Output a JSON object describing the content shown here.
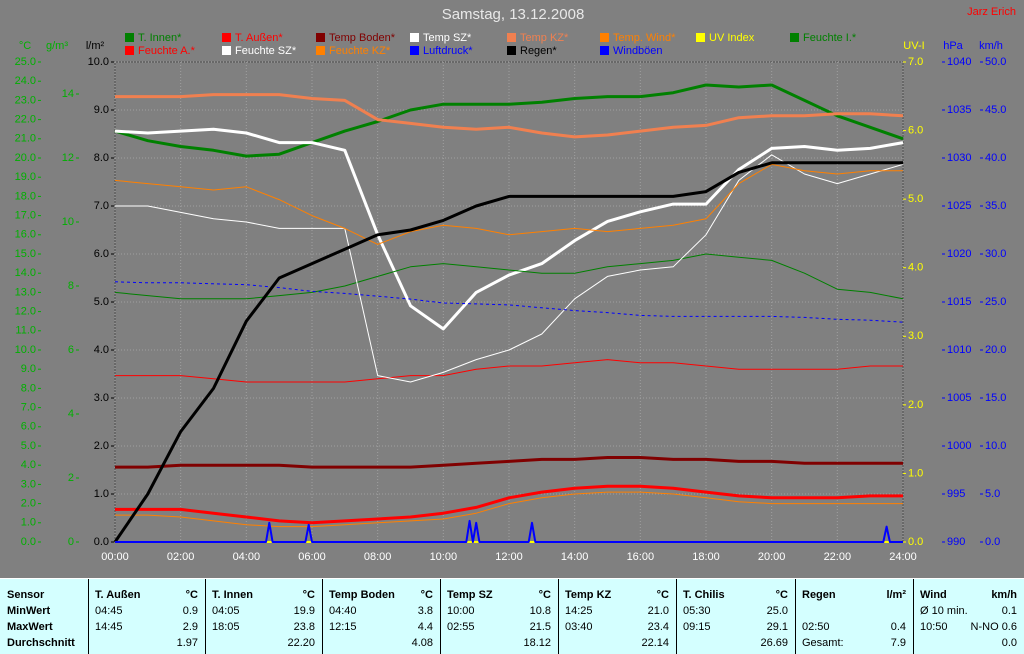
{
  "chart_data": {
    "type": "line",
    "title": "Samstag, 13.12.2008",
    "author": "Jarz Erich",
    "x": [
      0,
      1,
      2,
      3,
      4,
      5,
      6,
      7,
      8,
      9,
      10,
      11,
      12,
      13,
      14,
      15,
      16,
      17,
      18,
      19,
      20,
      21,
      22,
      23,
      24
    ],
    "xlim": [
      0,
      24
    ],
    "xticks": [
      {
        "value": 0,
        "label": "00:00"
      },
      {
        "value": 2,
        "label": "02:00"
      },
      {
        "value": 4,
        "label": "04:00"
      },
      {
        "value": 6,
        "label": "06:00"
      },
      {
        "value": 8,
        "label": "08:00"
      },
      {
        "value": 10,
        "label": "10:00"
      },
      {
        "value": 12,
        "label": "12:00"
      },
      {
        "value": 14,
        "label": "14:00"
      },
      {
        "value": 16,
        "label": "16:00"
      },
      {
        "value": 18,
        "label": "18:00"
      },
      {
        "value": 20,
        "label": "20:00"
      },
      {
        "value": 22,
        "label": "22:00"
      },
      {
        "value": 24,
        "label": "24:00"
      }
    ],
    "axes": [
      {
        "label": "°C",
        "side": "left",
        "color": "#00b000",
        "lim": [
          0,
          25
        ],
        "ticks": [
          {
            "value": 0,
            "label": "0.0"
          },
          {
            "value": 1,
            "label": "1.0"
          },
          {
            "value": 2,
            "label": "2.0"
          },
          {
            "value": 3,
            "label": "3.0"
          },
          {
            "value": 4,
            "label": "4.0"
          },
          {
            "value": 5,
            "label": "5.0"
          },
          {
            "value": 6,
            "label": "6.0"
          },
          {
            "value": 7,
            "label": "7.0"
          },
          {
            "value": 8,
            "label": "8.0"
          },
          {
            "value": 9,
            "label": "9.0"
          },
          {
            "value": 10,
            "label": "10.0"
          },
          {
            "value": 11,
            "label": "11.0"
          },
          {
            "value": 12,
            "label": "12.0"
          },
          {
            "value": 13,
            "label": "13.0"
          },
          {
            "value": 14,
            "label": "14.0"
          },
          {
            "value": 15,
            "label": "15.0"
          },
          {
            "value": 16,
            "label": "16.0"
          },
          {
            "value": 17,
            "label": "17.0"
          },
          {
            "value": 18,
            "label": "18.0"
          },
          {
            "value": 19,
            "label": "19.0"
          },
          {
            "value": 20,
            "label": "20.0"
          },
          {
            "value": 21,
            "label": "21.0"
          },
          {
            "value": 22,
            "label": "22.0"
          },
          {
            "value": 23,
            "label": "23.0"
          },
          {
            "value": 24,
            "label": "24.0"
          },
          {
            "value": 25,
            "label": "25.0"
          }
        ]
      },
      {
        "label": "g/m³",
        "side": "left",
        "color": "#00b000",
        "lim": [
          0,
          15
        ],
        "ticks": [
          0,
          2,
          4,
          6,
          8,
          10,
          12,
          14
        ]
      },
      {
        "label": "l/m²",
        "side": "left",
        "color": "#000000",
        "grid": true,
        "lim": [
          0,
          10
        ],
        "ticks": [
          {
            "value": 0,
            "label": "0.0"
          },
          {
            "value": 1,
            "label": "1.0"
          },
          {
            "value": 2,
            "label": "2.0"
          },
          {
            "value": 3,
            "label": "3.0"
          },
          {
            "value": 4,
            "label": "4.0"
          },
          {
            "value": 5,
            "label": "5.0"
          },
          {
            "value": 6,
            "label": "6.0"
          },
          {
            "value": 7,
            "label": "7.0"
          },
          {
            "value": 8,
            "label": "8.0"
          },
          {
            "value": 9,
            "label": "9.0"
          },
          {
            "value": 10,
            "label": "10.0"
          }
        ]
      },
      {
        "label": "UV-I",
        "side": "right",
        "color": "#ffff00",
        "lim": [
          0,
          7
        ],
        "ticks": [
          {
            "value": 0,
            "label": "0.0"
          },
          {
            "value": 1,
            "label": "1.0"
          },
          {
            "value": 2,
            "label": "2.0"
          },
          {
            "value": 3,
            "label": "3.0"
          },
          {
            "value": 4,
            "label": "4.0"
          },
          {
            "value": 5,
            "label": "5.0"
          },
          {
            "value": 6,
            "label": "6.0"
          },
          {
            "value": 7,
            "label": "7.0"
          }
        ]
      },
      {
        "label": "hPa",
        "side": "right",
        "color": "#0000ff",
        "lim": [
          990,
          1040
        ],
        "ticks": [
          990,
          995,
          1000,
          1005,
          1010,
          1015,
          1020,
          1025,
          1030,
          1035,
          1040
        ]
      },
      {
        "label": "km/h",
        "side": "right",
        "color": "#0000ff",
        "lim": [
          0,
          50
        ],
        "ticks": [
          {
            "value": 0,
            "label": "0.0"
          },
          {
            "value": 5,
            "label": "5.0"
          },
          {
            "value": 10,
            "label": "10.0"
          },
          {
            "value": 15,
            "label": "15.0"
          },
          {
            "value": 20,
            "label": "20.0"
          },
          {
            "value": 25,
            "label": "25.0"
          },
          {
            "value": 30,
            "label": "30.0"
          },
          {
            "value": 35,
            "label": "35.0"
          },
          {
            "value": 40,
            "label": "40.0"
          },
          {
            "value": 45,
            "label": "45.0"
          },
          {
            "value": 50,
            "label": "50.0"
          }
        ]
      }
    ],
    "series": [
      {
        "name": "T. Innen*",
        "color": "#008000",
        "width": 3,
        "axis": "°C",
        "values": [
          21.4,
          20.9,
          20.6,
          20.4,
          20.1,
          20.2,
          20.8,
          21.4,
          21.9,
          22.5,
          22.8,
          22.8,
          22.8,
          22.9,
          23.1,
          23.2,
          23.2,
          23.4,
          23.8,
          23.7,
          23.8,
          23.0,
          22.2,
          21.6,
          21.0
        ]
      },
      {
        "name": "T. Außen*",
        "color": "#ff0000",
        "width": 3,
        "axis": "°C",
        "values": [
          1.7,
          1.7,
          1.7,
          1.5,
          1.3,
          1.1,
          1.0,
          1.1,
          1.2,
          1.3,
          1.5,
          1.8,
          2.3,
          2.6,
          2.8,
          2.9,
          2.9,
          2.8,
          2.6,
          2.4,
          2.3,
          2.3,
          2.3,
          2.4,
          2.4
        ]
      },
      {
        "name": "Temp Boden*",
        "color": "#800000",
        "width": 3,
        "axis": "°C",
        "values": [
          3.9,
          3.9,
          4.0,
          4.0,
          4.0,
          4.0,
          3.9,
          3.9,
          3.9,
          3.9,
          4.0,
          4.1,
          4.2,
          4.3,
          4.3,
          4.4,
          4.4,
          4.3,
          4.3,
          4.2,
          4.2,
          4.1,
          4.1,
          4.1,
          4.1
        ]
      },
      {
        "name": "Temp SZ*",
        "color": "#ffffff",
        "width": 3,
        "axis": "°C",
        "values": [
          21.4,
          21.3,
          21.4,
          21.5,
          21.3,
          20.8,
          20.8,
          20.4,
          16.0,
          12.3,
          11.1,
          13.0,
          13.9,
          14.5,
          15.7,
          16.7,
          17.2,
          17.6,
          17.6,
          19.4,
          20.5,
          20.6,
          20.4,
          20.5,
          20.8
        ]
      },
      {
        "name": "Temp KZ*",
        "color": "#f08050",
        "width": 3,
        "axis": "°C",
        "values": [
          23.2,
          23.2,
          23.2,
          23.3,
          23.3,
          23.3,
          23.1,
          23.0,
          22.0,
          21.8,
          21.6,
          21.5,
          21.6,
          21.3,
          21.1,
          21.2,
          21.4,
          21.6,
          21.7,
          22.1,
          22.2,
          22.2,
          22.3,
          22.3,
          22.2
        ]
      },
      {
        "name": "Temp. Wind*",
        "color": "#ff8000",
        "width": 1,
        "axis": "°C",
        "values": [
          1.4,
          1.4,
          1.3,
          1.1,
          0.9,
          0.8,
          0.8,
          0.9,
          1.0,
          1.1,
          1.2,
          1.5,
          2.0,
          2.3,
          2.5,
          2.6,
          2.6,
          2.5,
          2.3,
          2.1,
          2.0,
          2.0,
          2.0,
          2.0,
          2.0
        ]
      },
      {
        "name": "UV Index",
        "color": "#ffff00",
        "width": 2,
        "axis": "UV-I",
        "values": [
          0,
          0,
          0,
          0,
          0,
          0,
          0,
          0,
          0,
          0,
          0,
          0,
          0,
          0,
          0,
          0,
          0,
          0,
          0,
          0,
          0,
          0,
          0,
          0,
          0
        ]
      },
      {
        "name": "Feuchte I.*",
        "color": "#008000",
        "width": 1,
        "axis": "g/m³",
        "values": [
          7.8,
          7.7,
          7.6,
          7.6,
          7.6,
          7.7,
          7.8,
          8.0,
          8.3,
          8.6,
          8.7,
          8.6,
          8.5,
          8.4,
          8.4,
          8.6,
          8.7,
          8.8,
          9.0,
          8.9,
          8.8,
          8.4,
          7.9,
          7.8,
          7.6
        ]
      },
      {
        "name": "Feuchte A.*",
        "color": "#ff0000",
        "width": 1,
        "axis": "g/m³",
        "values": [
          5.2,
          5.2,
          5.2,
          5.1,
          5.0,
          5.0,
          5.0,
          5.0,
          5.1,
          5.2,
          5.2,
          5.4,
          5.5,
          5.5,
          5.6,
          5.7,
          5.6,
          5.6,
          5.5,
          5.4,
          5.4,
          5.4,
          5.4,
          5.5,
          5.5
        ]
      },
      {
        "name": "Feuchte SZ*",
        "color": "#ffffff",
        "width": 1,
        "axis": "g/m³",
        "values": [
          10.5,
          10.5,
          10.3,
          10.1,
          10.0,
          9.8,
          9.8,
          9.8,
          5.2,
          5.0,
          5.3,
          5.7,
          6.0,
          6.5,
          7.6,
          8.3,
          8.5,
          8.6,
          9.6,
          11.3,
          12.1,
          11.5,
          11.2,
          11.5,
          11.8
        ]
      },
      {
        "name": "Feuchte KZ*",
        "color": "#ff8000",
        "width": 1,
        "axis": "g/m³",
        "values": [
          11.3,
          11.2,
          11.1,
          11.0,
          11.1,
          10.7,
          10.2,
          9.8,
          9.3,
          9.7,
          9.9,
          9.8,
          9.6,
          9.7,
          9.8,
          9.7,
          9.8,
          9.9,
          10.1,
          11.2,
          11.8,
          11.6,
          11.5,
          11.6,
          11.6
        ]
      },
      {
        "name": "Luftdruck*",
        "color": "#0000ff",
        "width": 1,
        "dashed": true,
        "axis": "hPa",
        "values": [
          1017.1,
          1017.0,
          1017.0,
          1016.9,
          1016.8,
          1016.5,
          1016.1,
          1015.9,
          1015.6,
          1015.3,
          1014.9,
          1014.8,
          1014.7,
          1014.4,
          1014.1,
          1013.9,
          1013.6,
          1013.5,
          1013.5,
          1013.5,
          1013.5,
          1013.4,
          1013.2,
          1013.1,
          1012.9
        ]
      },
      {
        "name": "Regen*",
        "color": "#000000",
        "width": 3,
        "axis": "l/m²",
        "values": [
          0,
          1.0,
          2.3,
          3.2,
          4.6,
          5.5,
          5.8,
          6.1,
          6.4,
          6.5,
          6.7,
          7.0,
          7.2,
          7.2,
          7.2,
          7.2,
          7.2,
          7.2,
          7.3,
          7.7,
          7.9,
          7.9,
          7.9,
          7.9,
          7.9
        ]
      },
      {
        "name": "Windböen",
        "color": "#0000ff",
        "width": 2,
        "axis": "km/h",
        "x": [
          0,
          4.6,
          4.7,
          4.8,
          5.8,
          5.9,
          6.0,
          10.7,
          10.8,
          10.9,
          11.0,
          11.1,
          11.2,
          12.6,
          12.7,
          12.8,
          23.4,
          23.5,
          23.6,
          24
        ],
        "values": [
          0,
          0,
          2.0,
          0,
          0,
          1.8,
          0,
          0,
          2.2,
          0,
          2.0,
          0,
          0,
          0,
          2.0,
          0,
          0,
          1.6,
          0,
          0
        ]
      }
    ]
  },
  "table": {
    "columns": [
      [
        "Sensor"
      ],
      [
        "T. Außen",
        "°C"
      ],
      [
        "T. Innen",
        "°C"
      ],
      [
        "Temp Boden",
        "°C"
      ],
      [
        "Temp SZ",
        "°C"
      ],
      [
        "Temp KZ",
        "°C"
      ],
      [
        "T. Chilis",
        "°C"
      ],
      [
        "Regen",
        "l/m²"
      ],
      [
        "Wind",
        "km/h"
      ]
    ],
    "rows": [
      [
        [
          "MinWert"
        ],
        [
          "04:45",
          "0.9"
        ],
        [
          "04:05",
          "19.9"
        ],
        [
          "04:40",
          "3.8"
        ],
        [
          "10:00",
          "10.8"
        ],
        [
          "14:25",
          "21.0"
        ],
        [
          "05:30",
          "25.0"
        ],
        [],
        [
          "Ø 10 min.",
          "0.1"
        ]
      ],
      [
        [
          "MaxWert"
        ],
        [
          "14:45",
          "2.9"
        ],
        [
          "18:05",
          "23.8"
        ],
        [
          "12:15",
          "4.4"
        ],
        [
          "02:55",
          "21.5"
        ],
        [
          "03:40",
          "23.4"
        ],
        [
          "09:15",
          "29.1"
        ],
        [
          "02:50",
          "0.4"
        ],
        [
          "10:50",
          "N-NO 0.6"
        ]
      ],
      [
        [
          "Durchschnitt"
        ],
        [
          "1.97"
        ],
        [
          "22.20"
        ],
        [
          "4.08"
        ],
        [
          "18.12"
        ],
        [
          "22.14"
        ],
        [
          "26.69"
        ],
        [
          "Gesamt:",
          "7.9"
        ],
        [
          "0.0"
        ]
      ]
    ]
  }
}
